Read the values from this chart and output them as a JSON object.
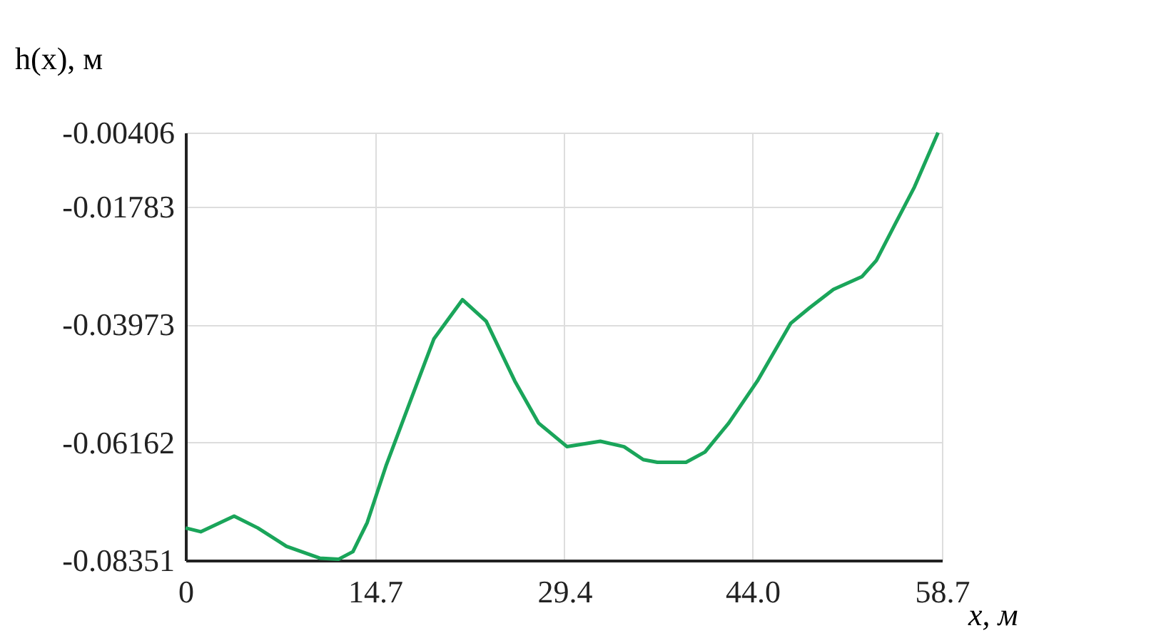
{
  "chart_data": {
    "type": "line",
    "xlabel": "x, м",
    "ylabel": "h(x), м",
    "x": [
      0,
      1.18,
      3.77,
      5.61,
      7.83,
      10.41,
      11.89,
      12.99,
      14.1,
      15.58,
      17.42,
      19.27,
      21.49,
      23.33,
      25.55,
      27.39,
      29.61,
      32.19,
      34.03,
      35.52,
      36.62,
      38.84,
      40.31,
      42.16,
      44.38,
      46.96,
      48.43,
      50.28,
      52.5,
      53.61,
      55.08,
      56.56,
      58.4
    ],
    "series": [
      {
        "color": "#1aa55a",
        "values": [
          -0.0775,
          -0.0782,
          -0.0753,
          -0.0775,
          -0.0809,
          -0.0831,
          -0.0833,
          -0.0819,
          -0.0765,
          -0.0658,
          -0.0541,
          -0.0424,
          -0.0351,
          -0.0391,
          -0.0502,
          -0.058,
          -0.0624,
          -0.0614,
          -0.0624,
          -0.0648,
          -0.0653,
          -0.0653,
          -0.0634,
          -0.058,
          -0.0502,
          -0.0395,
          -0.0366,
          -0.0332,
          -0.0308,
          -0.0278,
          -0.021,
          -0.0142,
          -0.00406
        ]
      }
    ],
    "xlim": [
      0,
      58.7
    ],
    "xticks": [
      0,
      14.7,
      29.4,
      {
        "value": 44,
        "label": "44.0"
      },
      58.7
    ],
    "ylim": [
      -0.08351,
      -0.00406
    ],
    "yticks": [
      -0.00406,
      -0.01783,
      -0.03973,
      -0.06162,
      -0.08351
    ],
    "grid": true,
    "line_style": "solid",
    "marker": "none"
  }
}
